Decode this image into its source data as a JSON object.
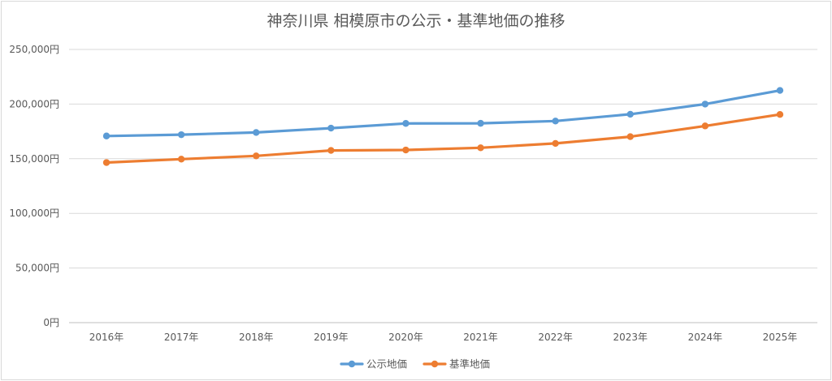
{
  "chart_data": {
    "type": "line",
    "title": "神奈川県 相模原市の公示・基準地価の推移",
    "xlabel": "",
    "ylabel": "",
    "ylim": [
      0,
      250000
    ],
    "yticks": [
      "0円",
      "50,000円",
      "100,000円",
      "150,000円",
      "200,000円",
      "250,000円"
    ],
    "categories": [
      "2016年",
      "2017年",
      "2018年",
      "2019年",
      "2020年",
      "2021年",
      "2022年",
      "2023年",
      "2024年",
      "2025年"
    ],
    "series": [
      {
        "name": "公示地価",
        "color": "#5b9bd5",
        "values": [
          170800,
          172000,
          174000,
          178000,
          182300,
          182400,
          184500,
          190700,
          200000,
          212500
        ]
      },
      {
        "name": "基準地価",
        "color": "#ed7d31",
        "values": [
          146500,
          149600,
          152600,
          157600,
          158000,
          160000,
          164000,
          170200,
          180000,
          190500
        ]
      }
    ],
    "grid": true,
    "legend": "bottom-center"
  }
}
